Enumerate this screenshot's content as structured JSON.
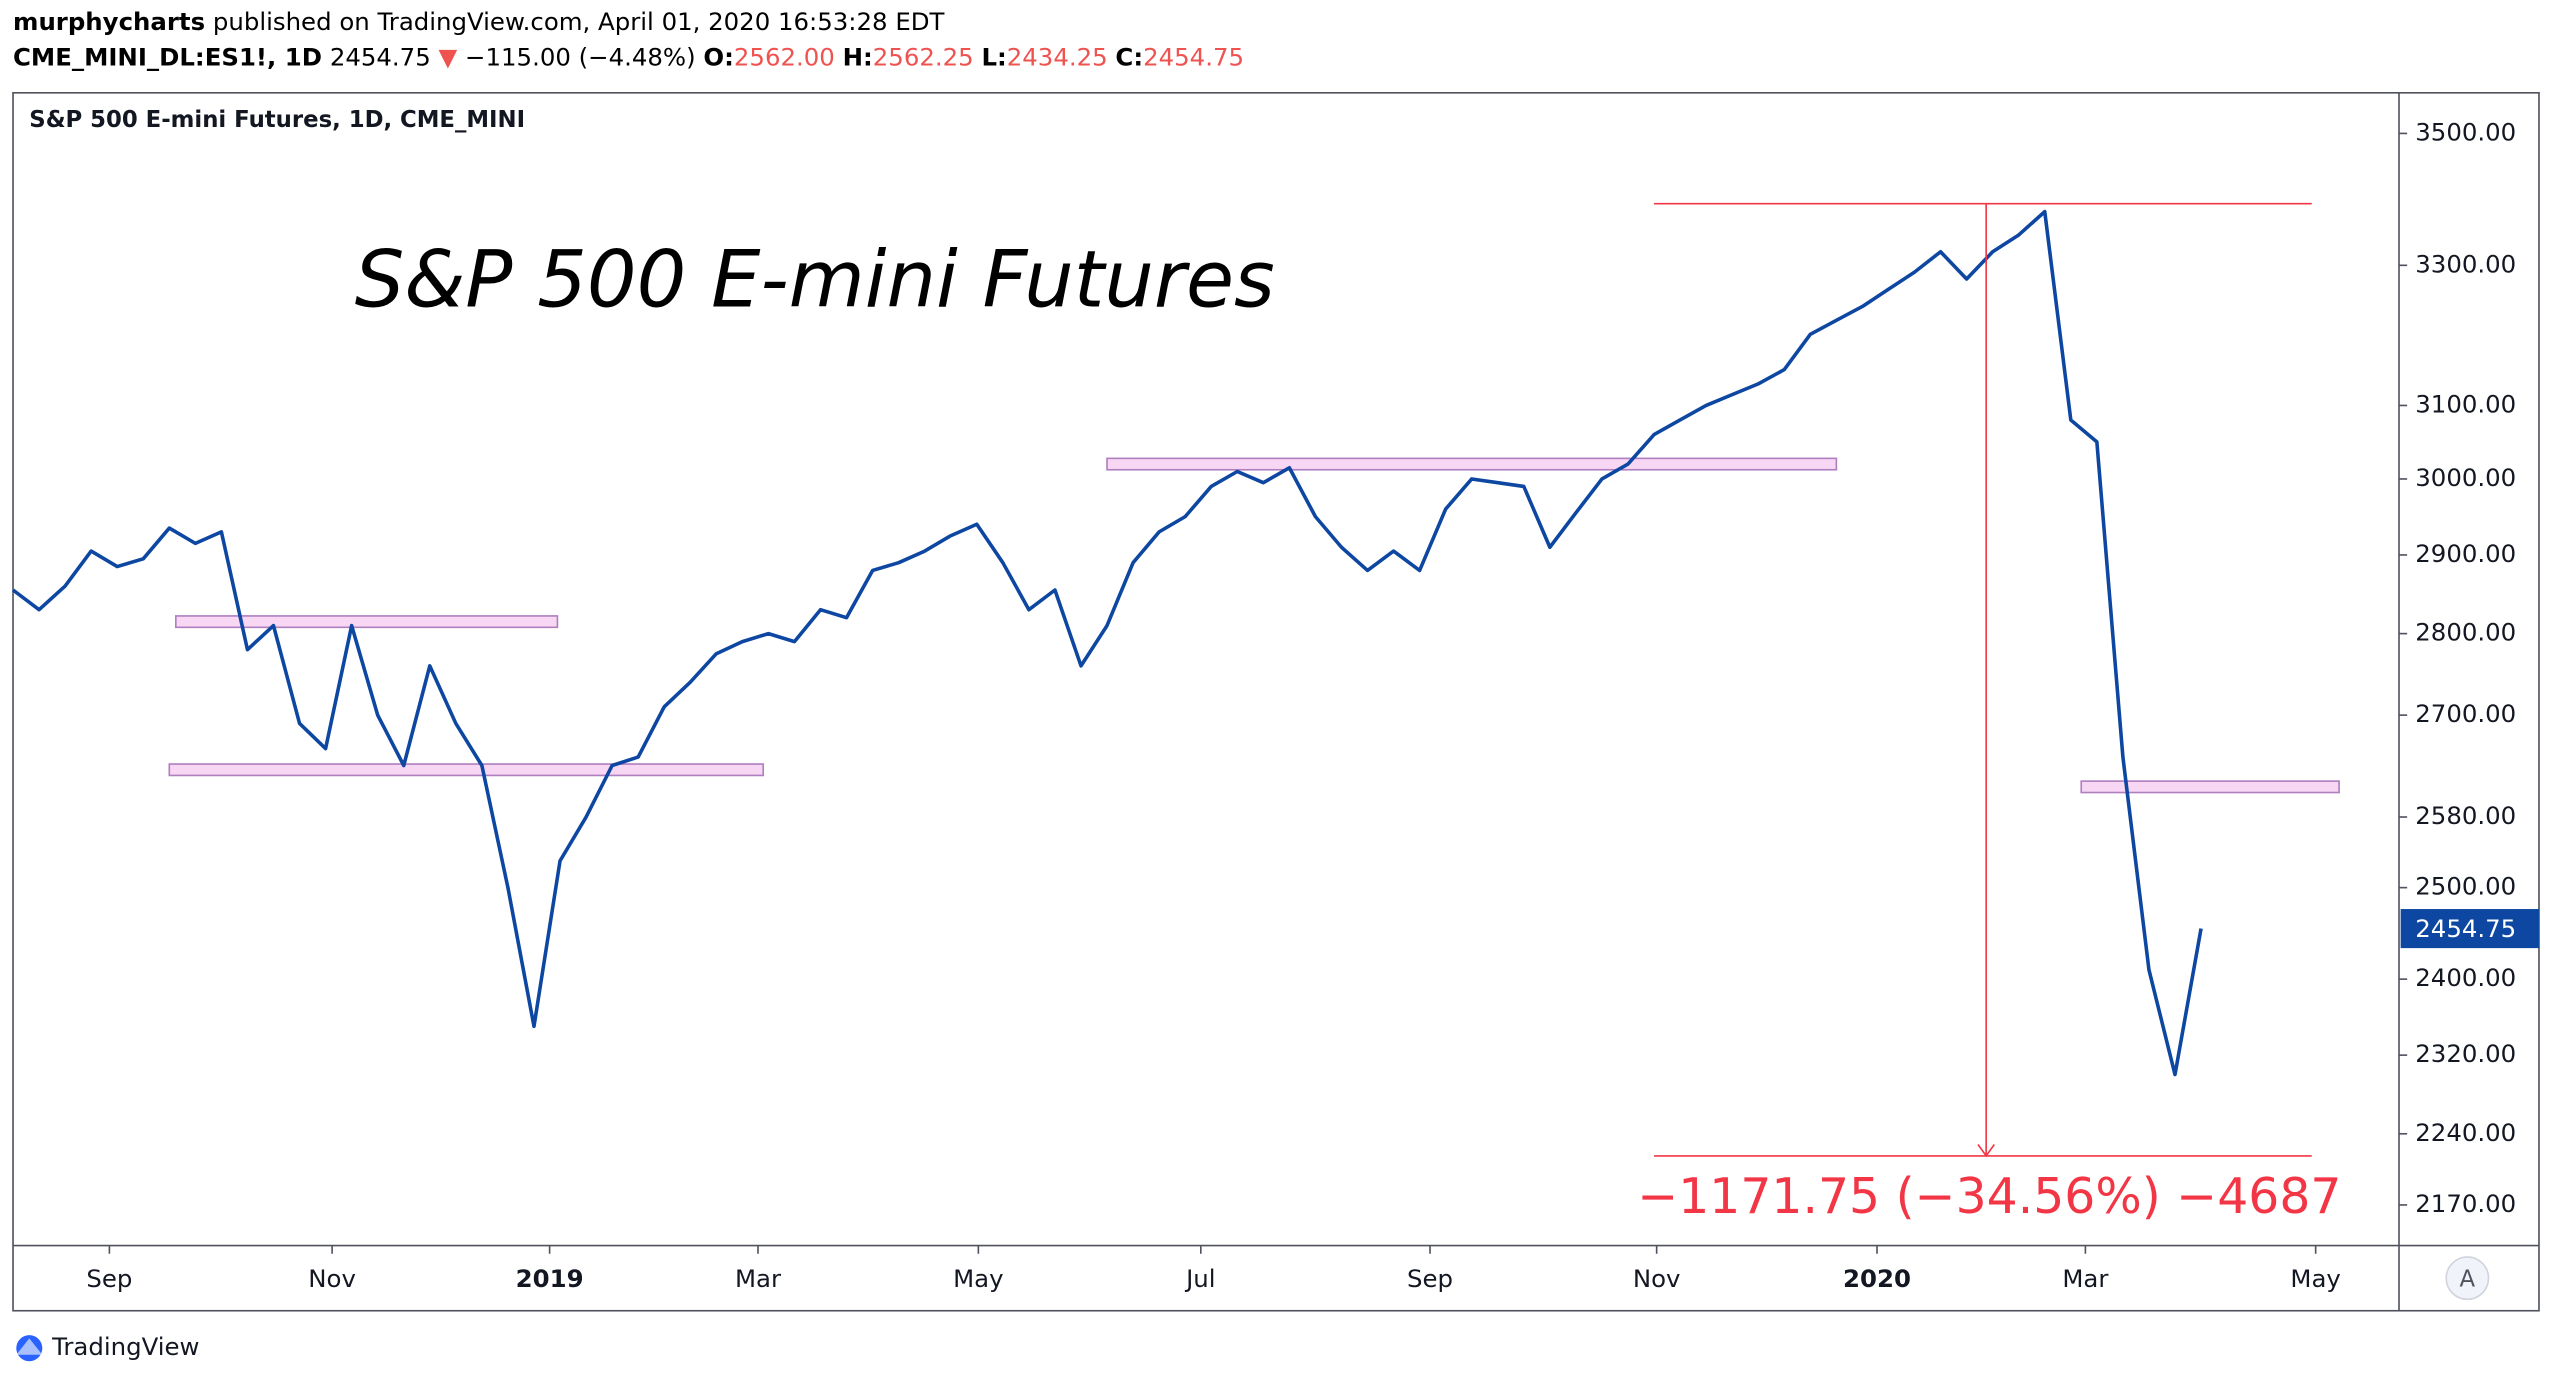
{
  "header": {
    "publisher": "murphycharts",
    "published": "published on TradingView.com, April 01, 2020 16:53:28 EDT",
    "symbol": "CME_MINI_DL:ES1!, 1D",
    "last": "2454.75",
    "arrow": "▼",
    "change": "−115.00 (−4.48%)",
    "o_label": "O:",
    "o": "2562.00",
    "h_label": "H:",
    "h": "2562.25",
    "l_label": "L:",
    "l": "2434.25",
    "c_label": "C:",
    "c": "2454.75"
  },
  "chart_data": {
    "type": "line",
    "legend": "S&P 500 E-mini Futures, 1D, CME_MINI",
    "title": "S&P 500 E-mini Futures",
    "color": "#0d47a1",
    "log_scale": true,
    "values": [
      2855,
      2830,
      2860,
      2905,
      2885,
      2895,
      2935,
      2915,
      2930,
      2780,
      2810,
      2690,
      2660,
      2810,
      2700,
      2640,
      2760,
      2690,
      2640,
      2500,
      2350,
      2530,
      2580,
      2640,
      2650,
      2710,
      2740,
      2775,
      2790,
      2800,
      2790,
      2830,
      2820,
      2880,
      2890,
      2905,
      2925,
      2940,
      2890,
      2830,
      2855,
      2760,
      2810,
      2890,
      2930,
      2950,
      2990,
      3010,
      2995,
      3015,
      2950,
      2910,
      2880,
      2905,
      2880,
      2960,
      3000,
      2995,
      2990,
      2910,
      2955,
      3000,
      3020,
      3060,
      3080,
      3100,
      3115,
      3130,
      3150,
      3200,
      3220,
      3240,
      3265,
      3290,
      3320,
      3280,
      3320,
      3345,
      3380,
      3080,
      3050,
      2650,
      2410,
      2300,
      2454.75
    ],
    "xlim": [
      0,
      91.6
    ],
    "xticks": [
      {
        "value": 3.7,
        "label": "Sep"
      },
      {
        "value": 12.25,
        "label": "Nov"
      },
      {
        "value": 20.6,
        "label": "2019"
      },
      {
        "value": 28.6,
        "label": "Mar"
      },
      {
        "value": 37.06,
        "label": "May"
      },
      {
        "value": 45.6,
        "label": "Jul"
      },
      {
        "value": 54.4,
        "label": "Sep"
      },
      {
        "value": 63.1,
        "label": "Nov"
      },
      {
        "value": 71.56,
        "label": "2020"
      },
      {
        "value": 79.56,
        "label": "Mar"
      },
      {
        "value": 88.4,
        "label": "May"
      }
    ],
    "ylim": [
      2131,
      3564
    ],
    "yticks": [
      {
        "value": 3500,
        "label": "3500.00"
      },
      {
        "value": 3300,
        "label": "3300.00"
      },
      {
        "value": 3100,
        "label": "3100.00"
      },
      {
        "value": 3000,
        "label": "3000.00"
      },
      {
        "value": 2900,
        "label": "2900.00"
      },
      {
        "value": 2800,
        "label": "2800.00"
      },
      {
        "value": 2700,
        "label": "2700.00"
      },
      {
        "value": 2580,
        "label": "2580.00"
      },
      {
        "value": 2500,
        "label": "2500.00"
      },
      {
        "value": 2400,
        "label": "2400.00"
      },
      {
        "value": 2320,
        "label": "2320.00"
      },
      {
        "value": 2240,
        "label": "2240.00"
      },
      {
        "value": 2170,
        "label": "2170.00"
      }
    ],
    "zones": [
      {
        "y": 2815,
        "x": [
          6.25,
          20.9
        ]
      },
      {
        "y": 2635,
        "x": [
          6,
          28.8
        ]
      },
      {
        "y": 3020,
        "x": [
          42,
          70
        ]
      },
      {
        "y": 2615,
        "x": [
          79.4,
          89.3
        ]
      }
    ],
    "measure": {
      "x": 75.75,
      "from": 3392,
      "to": 2218,
      "span": [
        63,
        88.25
      ],
      "label": "−1171.75 (−34.56%) −4687"
    },
    "scale_button": "A"
  },
  "footer": {
    "brand": "TradingView"
  }
}
